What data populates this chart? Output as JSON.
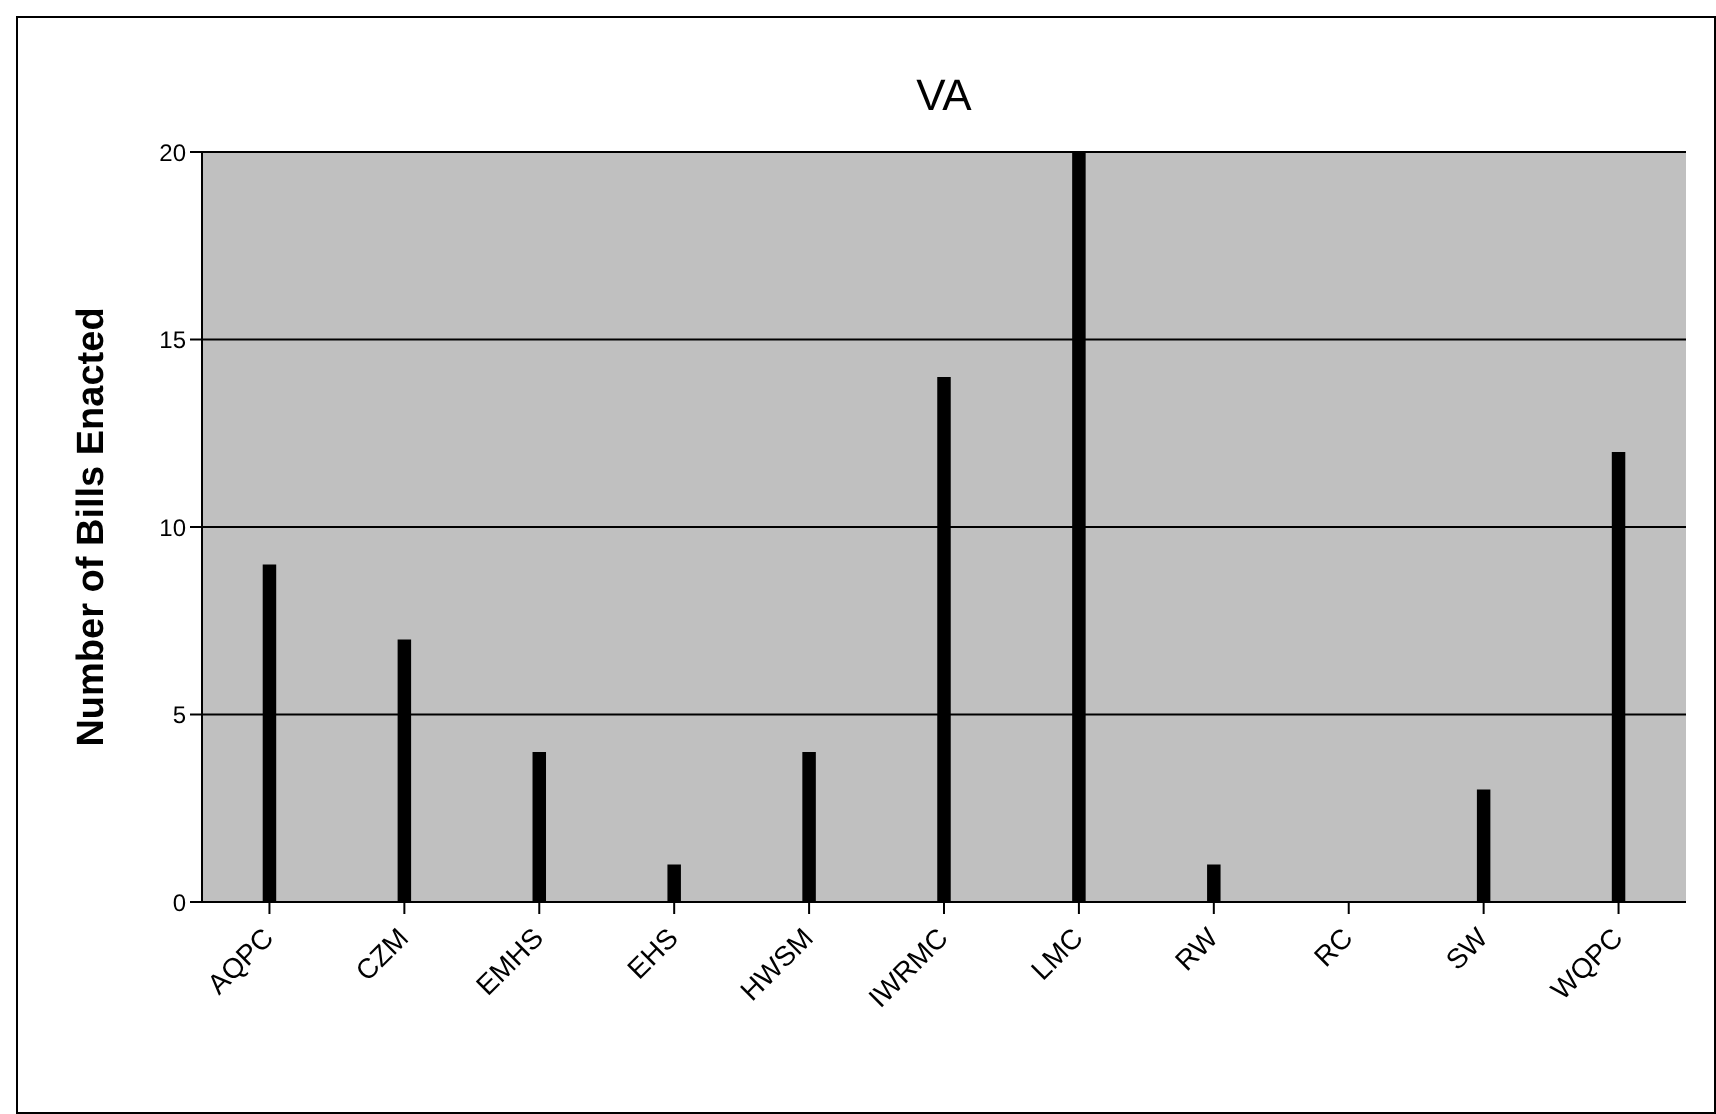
{
  "chart_data": {
    "type": "bar",
    "title": "VA",
    "ylabel": "Number of Bills Enacted",
    "categories": [
      "AQPC",
      "CZM",
      "EMHS",
      "EHS",
      "HWSM",
      "IWRMC",
      "LMC",
      "RW",
      "RC",
      "SW",
      "WQPC"
    ],
    "values": [
      9,
      7,
      4,
      1,
      4,
      14,
      20,
      1,
      0,
      3,
      12
    ],
    "color": "#000000",
    "ylim": [
      0,
      20
    ],
    "yticks": [
      0,
      5,
      10,
      15,
      20
    ],
    "grid": "y"
  }
}
